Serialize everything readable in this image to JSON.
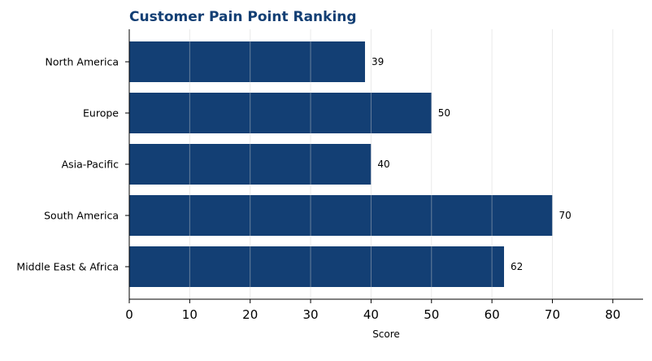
{
  "chart_data": {
    "type": "bar",
    "orientation": "horizontal",
    "title": "Customer Pain Point Ranking",
    "xlabel": "Score",
    "ylabel": "",
    "categories": [
      "North America",
      "Europe",
      "Asia-Pacific",
      "South America",
      "Middle East & Africa"
    ],
    "values": [
      39,
      50,
      40,
      70,
      62
    ],
    "xlim": [
      0,
      85
    ],
    "xticks": [
      0,
      10,
      20,
      30,
      40,
      50,
      60,
      70,
      80
    ],
    "grid": "vertical",
    "legend": "none",
    "data_labels": true
  },
  "colors": {
    "bar": "#133f74",
    "title": "#133f74",
    "grid": "#e6e6e6",
    "axis": "#000000"
  }
}
